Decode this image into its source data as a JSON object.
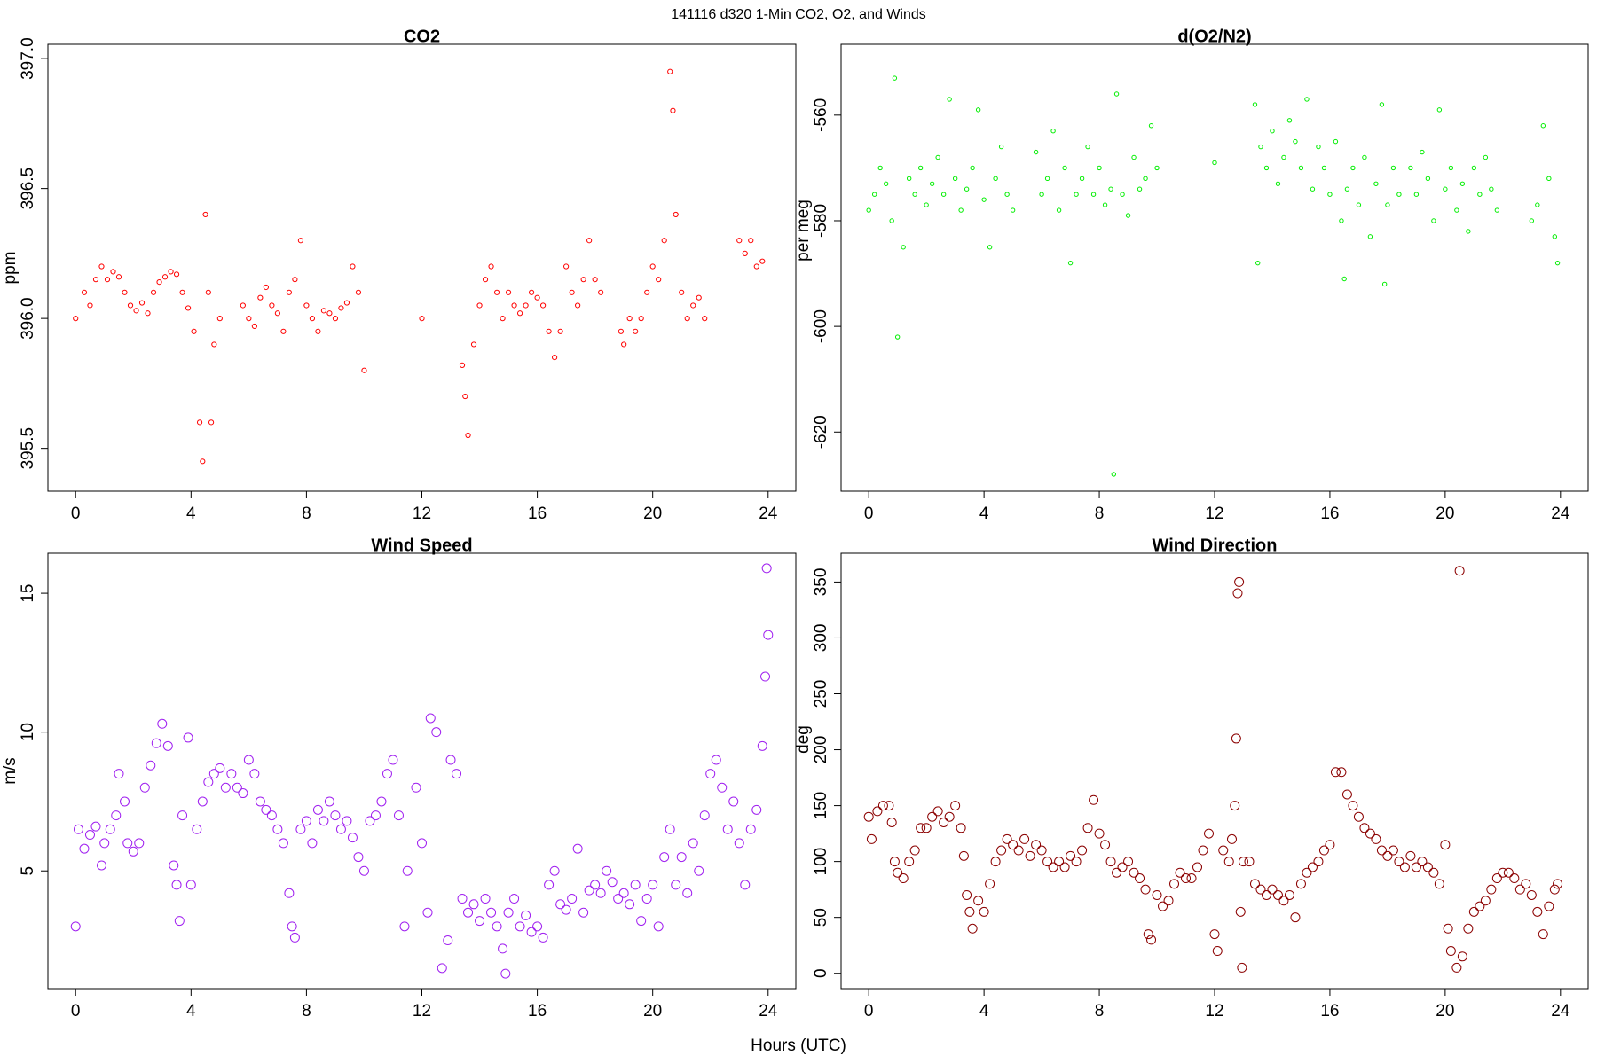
{
  "title": "141116   d320   1-Min CO2, O2, and Winds",
  "xlabel": "Hours (UTC)",
  "chart_data": [
    {
      "type": "scatter",
      "title": "CO2",
      "ylabel": "ppm",
      "color": "#ff0000",
      "xlim": [
        -0.96,
        24.96
      ],
      "xticks": [
        0,
        4,
        8,
        12,
        16,
        20,
        24
      ],
      "ylim": [
        395.335,
        397.055
      ],
      "yticks": [
        {
          "value": 395.5,
          "label": "395.5"
        },
        {
          "value": 396.0,
          "label": "396.0"
        },
        {
          "value": 396.5,
          "label": "396.5"
        },
        {
          "value": 397.0,
          "label": "397.0"
        }
      ],
      "x": [
        0,
        0.3,
        0.5,
        0.7,
        0.9,
        1.1,
        1.3,
        1.5,
        1.7,
        1.9,
        2.1,
        2.3,
        2.5,
        2.7,
        2.9,
        3.1,
        3.3,
        3.5,
        3.7,
        3.9,
        4.1,
        4.3,
        4.4,
        4.5,
        4.6,
        4.7,
        4.8,
        5.0,
        5.8,
        6.0,
        6.2,
        6.4,
        6.6,
        6.8,
        7.0,
        7.2,
        7.4,
        7.6,
        7.8,
        8.0,
        8.2,
        8.4,
        8.6,
        8.8,
        9.0,
        9.2,
        9.4,
        9.6,
        9.8,
        10.0,
        12.0,
        13.4,
        13.5,
        13.6,
        13.8,
        14.0,
        14.2,
        14.4,
        14.6,
        14.8,
        15.0,
        15.2,
        15.4,
        15.6,
        15.8,
        16.0,
        16.2,
        16.4,
        16.6,
        16.8,
        17.0,
        17.2,
        17.4,
        17.6,
        17.8,
        18.0,
        18.2,
        18.9,
        19.0,
        19.2,
        19.4,
        19.6,
        19.8,
        20.0,
        20.2,
        20.4,
        20.6,
        20.7,
        20.8,
        21.0,
        21.2,
        21.4,
        21.6,
        21.8,
        23.0,
        23.2,
        23.4,
        23.6,
        23.8
      ],
      "values": [
        396.0,
        396.1,
        396.05,
        396.15,
        396.2,
        396.15,
        396.18,
        396.16,
        396.1,
        396.05,
        396.03,
        396.06,
        396.02,
        396.1,
        396.14,
        396.16,
        396.18,
        396.17,
        396.1,
        396.04,
        395.95,
        395.6,
        395.45,
        396.4,
        396.1,
        395.6,
        395.9,
        396.0,
        396.05,
        396.0,
        395.97,
        396.08,
        396.12,
        396.05,
        396.02,
        395.95,
        396.1,
        396.15,
        396.3,
        396.05,
        396.0,
        395.95,
        396.03,
        396.02,
        396.0,
        396.04,
        396.06,
        396.2,
        396.1,
        395.8,
        396.0,
        395.82,
        395.7,
        395.55,
        395.9,
        396.05,
        396.15,
        396.2,
        396.1,
        396.0,
        396.1,
        396.05,
        396.02,
        396.05,
        396.1,
        396.08,
        396.05,
        395.95,
        395.85,
        395.95,
        396.2,
        396.1,
        396.05,
        396.15,
        396.3,
        396.15,
        396.1,
        395.95,
        395.9,
        396.0,
        395.95,
        396.0,
        396.1,
        396.2,
        396.15,
        396.3,
        396.95,
        396.8,
        396.4,
        396.1,
        396.0,
        396.05,
        396.08,
        396.0,
        396.3,
        396.25,
        396.3,
        396.2,
        396.22
      ]
    },
    {
      "type": "scatter",
      "title": "d(O2/N2)",
      "ylabel": "per meg",
      "color": "#00ee00",
      "xlim": [
        -0.96,
        24.96
      ],
      "xticks": [
        0,
        4,
        8,
        12,
        16,
        20,
        24
      ],
      "ylim": [
        -631.2,
        -546.6
      ],
      "yticks": [
        -620,
        -600,
        -580,
        -560
      ],
      "x": [
        0,
        0.2,
        0.4,
        0.6,
        0.8,
        0.9,
        1.0,
        1.2,
        1.4,
        1.6,
        1.8,
        2.0,
        2.2,
        2.4,
        2.6,
        2.8,
        3.0,
        3.2,
        3.4,
        3.6,
        3.8,
        4.0,
        4.2,
        4.4,
        4.6,
        4.8,
        5.0,
        5.8,
        6.0,
        6.2,
        6.4,
        6.6,
        6.8,
        7.0,
        7.2,
        7.4,
        7.6,
        7.8,
        8.0,
        8.2,
        8.4,
        8.5,
        8.6,
        8.8,
        9.0,
        9.2,
        9.4,
        9.6,
        9.8,
        10.0,
        12.0,
        13.4,
        13.5,
        13.6,
        13.8,
        14.0,
        14.2,
        14.4,
        14.6,
        14.8,
        15.0,
        15.2,
        15.4,
        15.6,
        15.8,
        16.0,
        16.2,
        16.4,
        16.5,
        16.6,
        16.8,
        17.0,
        17.2,
        17.4,
        17.6,
        17.8,
        17.9,
        18.0,
        18.2,
        18.4,
        18.8,
        19.0,
        19.2,
        19.4,
        19.6,
        19.8,
        20.0,
        20.2,
        20.4,
        20.6,
        20.8,
        21.0,
        21.2,
        21.4,
        21.6,
        21.8,
        23.0,
        23.2,
        23.4,
        23.6,
        23.8,
        23.9
      ],
      "values": [
        -578,
        -575,
        -570,
        -573,
        -580,
        -553,
        -602,
        -585,
        -572,
        -575,
        -570,
        -577,
        -573,
        -568,
        -575,
        -557,
        -572,
        -578,
        -574,
        -570,
        -559,
        -576,
        -585,
        -572,
        -566,
        -575,
        -578,
        -567,
        -575,
        -572,
        -563,
        -578,
        -570,
        -588,
        -575,
        -572,
        -566,
        -575,
        -570,
        -577,
        -574,
        -628,
        -556,
        -575,
        -579,
        -568,
        -574,
        -572,
        -562,
        -570,
        -569,
        -558,
        -588,
        -566,
        -570,
        -563,
        -573,
        -568,
        -561,
        -565,
        -570,
        -557,
        -574,
        -566,
        -570,
        -575,
        -565,
        -580,
        -591,
        -574,
        -570,
        -577,
        -568,
        -583,
        -573,
        -558,
        -592,
        -577,
        -570,
        -575,
        -570,
        -575,
        -567,
        -572,
        -580,
        -559,
        -574,
        -570,
        -578,
        -573,
        -582,
        -570,
        -575,
        -568,
        -574,
        -578,
        -580,
        -577,
        -562,
        -572,
        -583,
        -588
      ]
    },
    {
      "type": "scatter",
      "title": "Wind Speed",
      "ylabel": "m/s",
      "color": "#a020f0",
      "xlim": [
        -0.96,
        24.96
      ],
      "xticks": [
        0,
        4,
        8,
        12,
        16,
        20,
        24
      ],
      "ylim": [
        0.76,
        16.44
      ],
      "yticks": [
        5,
        10,
        15
      ],
      "x": [
        0,
        0.1,
        0.3,
        0.5,
        0.7,
        0.9,
        1.0,
        1.2,
        1.4,
        1.5,
        1.7,
        1.8,
        2.0,
        2.2,
        2.4,
        2.6,
        2.8,
        3.0,
        3.2,
        3.4,
        3.5,
        3.6,
        3.7,
        3.9,
        4.0,
        4.2,
        4.4,
        4.6,
        4.8,
        5.0,
        5.2,
        5.4,
        5.6,
        5.8,
        6.0,
        6.2,
        6.4,
        6.6,
        6.8,
        7.0,
        7.2,
        7.4,
        7.5,
        7.6,
        7.8,
        8.0,
        8.2,
        8.4,
        8.6,
        8.8,
        9.0,
        9.2,
        9.4,
        9.6,
        9.8,
        10.0,
        10.2,
        10.4,
        10.6,
        10.8,
        11.0,
        11.2,
        11.4,
        11.5,
        11.8,
        12.0,
        12.2,
        12.3,
        12.5,
        12.7,
        12.9,
        13.0,
        13.2,
        13.4,
        13.6,
        13.8,
        14.0,
        14.2,
        14.4,
        14.6,
        14.8,
        14.9,
        15.0,
        15.2,
        15.4,
        15.6,
        15.8,
        16.0,
        16.2,
        16.4,
        16.6,
        16.8,
        17.0,
        17.2,
        17.4,
        17.6,
        17.8,
        18.0,
        18.2,
        18.4,
        18.6,
        18.8,
        19.0,
        19.2,
        19.4,
        19.6,
        19.8,
        20.0,
        20.2,
        20.4,
        20.6,
        20.8,
        21.0,
        21.2,
        21.4,
        21.6,
        21.8,
        22.0,
        22.2,
        22.4,
        22.6,
        22.8,
        23.0,
        23.2,
        23.4,
        23.6,
        23.8,
        23.9,
        24.0,
        23.95
      ],
      "values": [
        3.0,
        6.5,
        5.8,
        6.3,
        6.6,
        5.2,
        6.0,
        6.5,
        7.0,
        8.5,
        7.5,
        6.0,
        5.7,
        6.0,
        8.0,
        8.8,
        9.6,
        10.3,
        9.5,
        5.2,
        4.5,
        3.2,
        7.0,
        9.8,
        4.5,
        6.5,
        7.5,
        8.2,
        8.5,
        8.7,
        8.0,
        8.5,
        8.0,
        7.8,
        9.0,
        8.5,
        7.5,
        7.2,
        7.0,
        6.5,
        6.0,
        4.2,
        3.0,
        2.6,
        6.5,
        6.8,
        6.0,
        7.2,
        6.8,
        7.5,
        7.0,
        6.5,
        6.8,
        6.2,
        5.5,
        5.0,
        6.8,
        7.0,
        7.5,
        8.5,
        9.0,
        7.0,
        3.0,
        5.0,
        8.0,
        6.0,
        3.5,
        10.5,
        10.0,
        1.5,
        2.5,
        9.0,
        8.5,
        4.0,
        3.5,
        3.8,
        3.2,
        4.0,
        3.5,
        3.0,
        2.2,
        1.3,
        3.5,
        4.0,
        3.0,
        3.4,
        2.8,
        3.0,
        2.6,
        4.5,
        5.0,
        3.8,
        3.6,
        4.0,
        5.8,
        3.5,
        4.3,
        4.5,
        4.2,
        5.0,
        4.6,
        4.0,
        4.2,
        3.8,
        4.5,
        3.2,
        4.0,
        4.5,
        3.0,
        5.5,
        6.5,
        4.5,
        5.5,
        4.2,
        6.0,
        5.0,
        7.0,
        8.5,
        9.0,
        8.0,
        6.5,
        7.5,
        6.0,
        4.5,
        6.5,
        7.2,
        9.5,
        12.0,
        13.5,
        15.9
      ]
    },
    {
      "type": "scatter",
      "title": "Wind Direction",
      "ylabel": "deg",
      "color": "#8b0000",
      "xlim": [
        -0.96,
        24.96
      ],
      "xticks": [
        0,
        4,
        8,
        12,
        16,
        20,
        24
      ],
      "ylim": [
        -13.7,
        375.7
      ],
      "yticks": [
        0,
        50,
        100,
        150,
        200,
        250,
        300,
        350
      ],
      "x": [
        0,
        0.1,
        0.3,
        0.5,
        0.7,
        0.8,
        0.9,
        1.0,
        1.2,
        1.4,
        1.6,
        1.8,
        2.0,
        2.2,
        2.4,
        2.6,
        2.8,
        3.0,
        3.2,
        3.3,
        3.4,
        3.5,
        3.6,
        3.8,
        4.0,
        4.2,
        4.4,
        4.6,
        4.8,
        5.0,
        5.2,
        5.4,
        5.6,
        5.8,
        6.0,
        6.2,
        6.4,
        6.6,
        6.8,
        7.0,
        7.2,
        7.4,
        7.6,
        7.8,
        8.0,
        8.2,
        8.4,
        8.6,
        8.8,
        9.0,
        9.2,
        9.4,
        9.6,
        9.7,
        9.8,
        10.0,
        10.2,
        10.4,
        10.6,
        10.8,
        11.0,
        11.2,
        11.4,
        11.6,
        11.8,
        12.0,
        12.1,
        12.3,
        12.5,
        12.6,
        12.7,
        12.75,
        12.8,
        12.85,
        12.9,
        12.95,
        13.0,
        13.2,
        13.4,
        13.6,
        13.8,
        14.0,
        14.2,
        14.4,
        14.6,
        14.8,
        15.0,
        15.2,
        15.4,
        15.6,
        15.8,
        16.0,
        16.2,
        16.4,
        16.6,
        16.8,
        17.0,
        17.2,
        17.4,
        17.6,
        17.8,
        18.0,
        18.2,
        18.4,
        18.6,
        18.8,
        19.0,
        19.2,
        19.4,
        19.6,
        19.8,
        20.0,
        20.1,
        20.2,
        20.4,
        20.5,
        20.6,
        20.8,
        21.0,
        21.2,
        21.4,
        21.6,
        21.8,
        22.0,
        22.2,
        22.4,
        22.6,
        22.8,
        23.0,
        23.2,
        23.4,
        23.6,
        23.8,
        23.9
      ],
      "values": [
        140,
        120,
        145,
        150,
        150,
        135,
        100,
        90,
        85,
        100,
        110,
        130,
        130,
        140,
        145,
        135,
        140,
        150,
        130,
        105,
        70,
        55,
        40,
        65,
        55,
        80,
        100,
        110,
        120,
        115,
        110,
        120,
        105,
        115,
        110,
        100,
        95,
        100,
        95,
        105,
        100,
        110,
        130,
        155,
        125,
        115,
        100,
        90,
        95,
        100,
        90,
        85,
        75,
        35,
        30,
        70,
        60,
        65,
        80,
        90,
        85,
        85,
        95,
        110,
        125,
        35,
        20,
        110,
        100,
        120,
        150,
        210,
        340,
        350,
        55,
        5,
        100,
        100,
        80,
        75,
        70,
        75,
        70,
        65,
        70,
        50,
        80,
        90,
        95,
        100,
        110,
        115,
        180,
        180,
        160,
        150,
        140,
        130,
        125,
        120,
        110,
        105,
        110,
        100,
        95,
        105,
        95,
        100,
        95,
        90,
        80,
        115,
        40,
        20,
        5,
        360,
        15,
        40,
        55,
        60,
        65,
        75,
        85,
        90,
        90,
        85,
        75,
        80,
        70,
        55,
        35,
        60,
        75,
        80
      ]
    }
  ]
}
